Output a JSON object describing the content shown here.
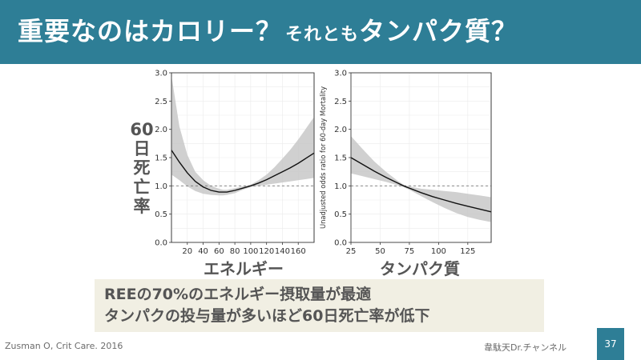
{
  "title": {
    "main": "重要なのはカロリー？",
    "sub": "それとも",
    "end": "タンパク質？"
  },
  "y_axis_side_label_chars": [
    "60",
    "日",
    "死",
    "亡",
    "率"
  ],
  "summary": {
    "line1": "REEの70%のエネルギー摂取量が最適",
    "line2": "タンパクの投与量が多いほど60日死亡率が低下"
  },
  "footer": {
    "citation": "Zusman O, Crit Care. 2016",
    "channel": "韋駄天Dr.チャンネル",
    "page": "37"
  },
  "colors": {
    "header": "#2e7e96",
    "band": "#c8c8c8",
    "line": "#111111",
    "summary_bg": "#f1efe3"
  },
  "chart_data": [
    {
      "type": "line",
      "title": "",
      "xlabel": "エネルギー",
      "ylabel": "",
      "xlim": [
        0,
        180
      ],
      "ylim": [
        0,
        3.0
      ],
      "x_ticks": [
        20,
        40,
        60,
        80,
        100,
        120,
        140,
        160
      ],
      "y_ticks": [
        "0.0",
        "0.5",
        "1.0",
        "1.5",
        "2.0",
        "2.5",
        "3.0"
      ],
      "reference_line": 1.0,
      "grid": true,
      "series": [
        {
          "x": [
            0,
            10,
            20,
            30,
            40,
            50,
            60,
            65,
            70,
            80,
            90,
            100,
            110,
            120,
            130,
            140,
            150,
            160,
            170,
            180
          ],
          "y": [
            1.63,
            1.42,
            1.23,
            1.08,
            0.98,
            0.92,
            0.89,
            0.89,
            0.89,
            0.92,
            0.96,
            1.0,
            1.05,
            1.11,
            1.18,
            1.25,
            1.32,
            1.4,
            1.49,
            1.58
          ],
          "lower": [
            1.2,
            1.1,
            0.99,
            0.91,
            0.86,
            0.84,
            0.83,
            0.83,
            0.84,
            0.87,
            0.93,
            0.98,
            1.0,
            1.02,
            1.04,
            1.06,
            1.08,
            1.1,
            1.12,
            1.14
          ],
          "upper": [
            2.95,
            2.05,
            1.55,
            1.25,
            1.1,
            1.0,
            0.95,
            0.93,
            0.93,
            0.96,
            0.99,
            1.02,
            1.1,
            1.2,
            1.33,
            1.48,
            1.64,
            1.82,
            2.02,
            2.22
          ]
        }
      ]
    },
    {
      "type": "line",
      "title": "",
      "xlabel": "タンパク質",
      "ylabel": "Unadjusted odds ratio for 60-day Mortality",
      "xlim": [
        25,
        145
      ],
      "ylim": [
        0,
        3.0
      ],
      "x_ticks": [
        25,
        50,
        75,
        100,
        125
      ],
      "y_ticks": [
        "0.0",
        "0.5",
        "1.0",
        "1.5",
        "2.0",
        "2.5",
        "3.0"
      ],
      "reference_line": 1.0,
      "grid": true,
      "series": [
        {
          "x": [
            25,
            35,
            45,
            55,
            65,
            70,
            75,
            85,
            95,
            105,
            115,
            125,
            135,
            145
          ],
          "y": [
            1.5,
            1.38,
            1.26,
            1.15,
            1.05,
            1.0,
            0.96,
            0.88,
            0.81,
            0.75,
            0.69,
            0.64,
            0.59,
            0.54
          ],
          "lower": [
            1.22,
            1.17,
            1.12,
            1.07,
            1.01,
            0.98,
            0.93,
            0.82,
            0.71,
            0.61,
            0.52,
            0.45,
            0.4,
            0.36
          ],
          "upper": [
            1.88,
            1.65,
            1.43,
            1.25,
            1.09,
            1.02,
            0.99,
            0.95,
            0.93,
            0.91,
            0.89,
            0.86,
            0.83,
            0.8
          ]
        }
      ]
    }
  ]
}
